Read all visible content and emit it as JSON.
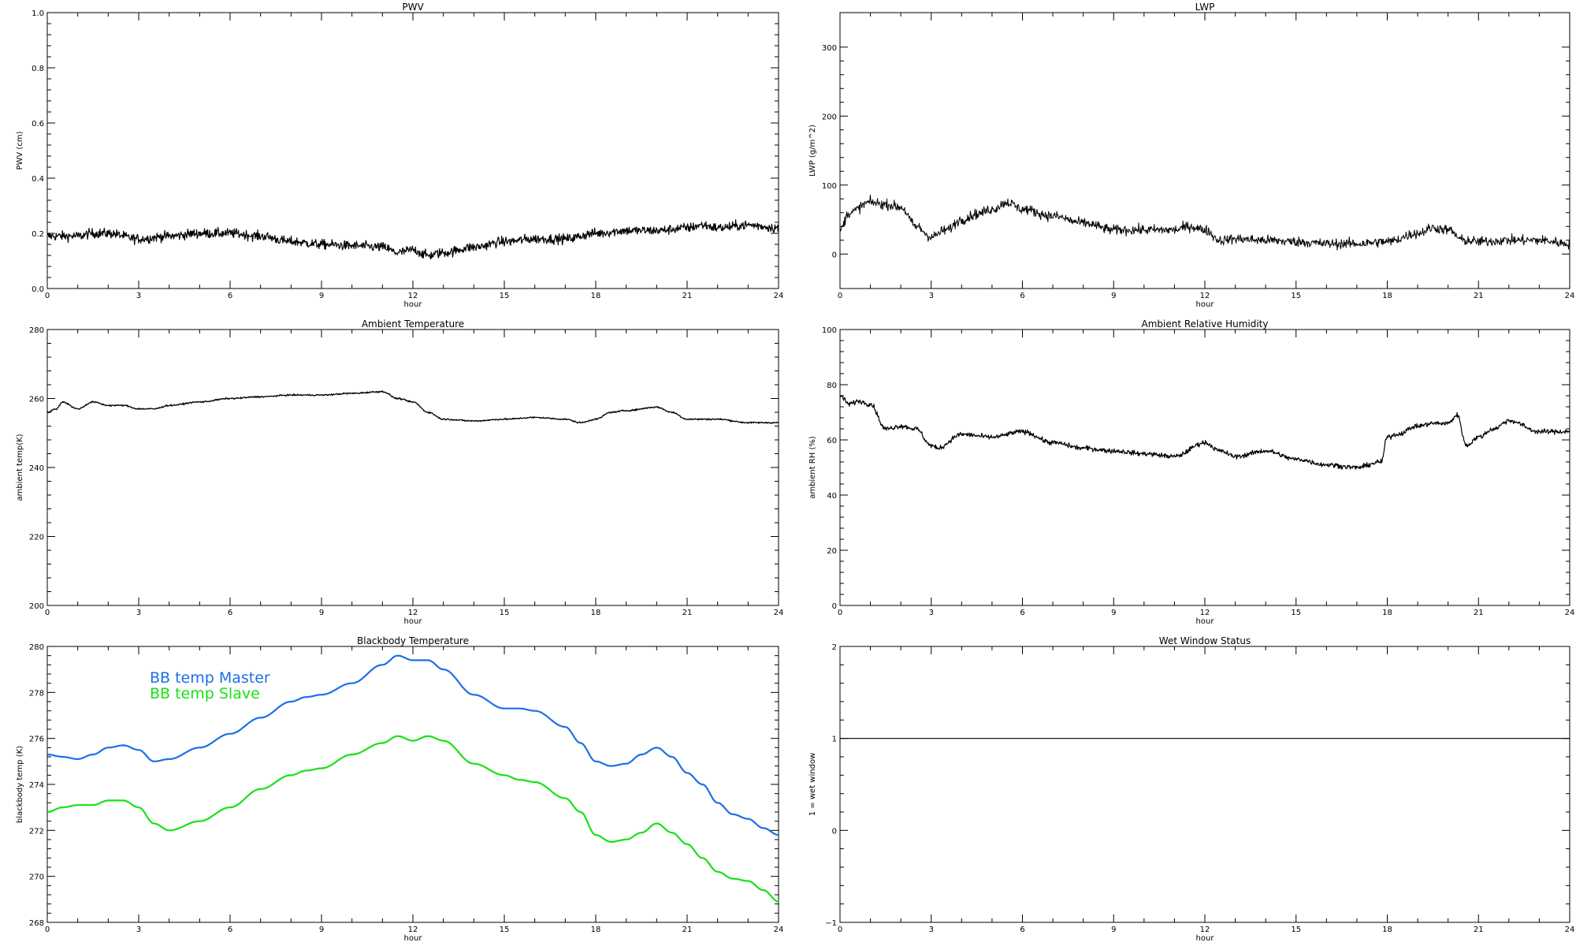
{
  "chart_data": [
    {
      "id": "pwv",
      "type": "line",
      "title": "PWV",
      "xlabel": "hour",
      "ylabel": "PWV (cm)",
      "xlim": [
        0,
        24
      ],
      "ylim": [
        0,
        1
      ],
      "xticks": [
        "0",
        "3",
        "6",
        "9",
        "12",
        "15",
        "18",
        "21",
        "24"
      ],
      "yticks": [
        "0.0",
        "0.2",
        "0.4",
        "0.6",
        "0.8",
        "1.0"
      ],
      "noise": 0.012,
      "series": [
        {
          "name": "",
          "color": "#000000",
          "stroke": 1.2,
          "x": [
            0,
            1,
            1.5,
            2,
            3,
            4,
            5,
            6,
            7,
            8,
            9,
            10,
            11,
            11.5,
            12,
            12.5,
            13,
            14,
            15,
            16,
            17,
            18,
            19,
            20,
            21,
            21.5,
            22,
            23,
            24
          ],
          "y": [
            0.19,
            0.19,
            0.2,
            0.2,
            0.18,
            0.19,
            0.2,
            0.2,
            0.19,
            0.17,
            0.16,
            0.155,
            0.15,
            0.13,
            0.14,
            0.12,
            0.13,
            0.15,
            0.17,
            0.18,
            0.18,
            0.2,
            0.21,
            0.21,
            0.22,
            0.23,
            0.22,
            0.23,
            0.22
          ]
        }
      ]
    },
    {
      "id": "lwp",
      "type": "line",
      "title": "LWP",
      "xlabel": "hour",
      "ylabel": "LWP (g/m^2)",
      "xlim": [
        0,
        24
      ],
      "ylim": [
        -50,
        350
      ],
      "xticks": [
        "0",
        "3",
        "6",
        "9",
        "12",
        "15",
        "18",
        "21",
        "24"
      ],
      "yticks": [
        "0",
        "100",
        "200",
        "300"
      ],
      "noise": 5,
      "series": [
        {
          "name": "",
          "color": "#000000",
          "stroke": 1,
          "x": [
            0,
            0.3,
            1,
            1.5,
            2,
            2.5,
            3,
            3.5,
            4,
            4.5,
            5,
            5.5,
            6,
            7,
            8,
            9,
            10,
            11,
            11.5,
            12,
            12.5,
            13,
            14,
            15,
            16,
            17,
            18,
            19,
            19.5,
            20,
            20.5,
            21,
            22,
            23,
            24
          ],
          "y": [
            35,
            60,
            75,
            72,
            68,
            40,
            25,
            35,
            50,
            58,
            65,
            75,
            65,
            55,
            45,
            35,
            35,
            35,
            40,
            35,
            20,
            22,
            20,
            18,
            15,
            15,
            18,
            30,
            38,
            35,
            20,
            18,
            20,
            20,
            15
          ]
        }
      ]
    },
    {
      "id": "ambient_temp",
      "type": "line",
      "title": "Ambient Temperature",
      "xlabel": "hour",
      "ylabel": "ambient temp(K)",
      "xlim": [
        0,
        24
      ],
      "ylim": [
        200,
        280
      ],
      "xticks": [
        "0",
        "3",
        "6",
        "9",
        "12",
        "15",
        "18",
        "21",
        "24"
      ],
      "yticks": [
        "200",
        "220",
        "240",
        "260",
        "280"
      ],
      "noise": 0.15,
      "series": [
        {
          "name": "",
          "color": "#000000",
          "stroke": 1.3,
          "x": [
            0,
            0.3,
            0.5,
            1,
            1.5,
            2,
            2.5,
            3,
            3.5,
            4,
            5,
            6,
            7,
            8,
            9,
            10,
            11,
            11.5,
            12,
            12.5,
            13,
            14,
            15,
            16,
            17,
            17.5,
            18,
            18.5,
            19,
            20,
            20.5,
            21,
            22,
            23,
            24
          ],
          "y": [
            256,
            257,
            259,
            257,
            259,
            258,
            258,
            257,
            257,
            258,
            259,
            260,
            260.5,
            261,
            261,
            261.5,
            262,
            260,
            259,
            256,
            254,
            253.5,
            254,
            254.5,
            254,
            253,
            254,
            256,
            256.5,
            257.5,
            256,
            254,
            254,
            253,
            253
          ]
        }
      ]
    },
    {
      "id": "ambient_rh",
      "type": "line",
      "title": "Ambient Relative Humidity",
      "xlabel": "hour",
      "ylabel": "ambient RH (%)",
      "xlim": [
        0,
        24
      ],
      "ylim": [
        0,
        100
      ],
      "xticks": [
        "0",
        "3",
        "6",
        "9",
        "12",
        "15",
        "18",
        "21",
        "24"
      ],
      "yticks": [
        "0",
        "20",
        "40",
        "60",
        "80",
        "100"
      ],
      "noise": 0.6,
      "series": [
        {
          "name": "",
          "color": "#000000",
          "stroke": 1.2,
          "x": [
            0,
            0.3,
            0.6,
            1,
            1.5,
            2,
            2.5,
            3,
            3.2,
            4,
            5,
            6,
            7,
            8,
            9,
            10,
            11,
            12,
            12.5,
            13,
            14,
            15,
            16,
            17,
            17.8,
            18,
            18.3,
            19,
            19.5,
            20,
            20.3,
            20.6,
            21,
            21.5,
            22,
            23,
            24
          ],
          "y": [
            76,
            73,
            74,
            73,
            64,
            65,
            64,
            58,
            57,
            62,
            61,
            63,
            59,
            57,
            56,
            55,
            54,
            59,
            56,
            54,
            56,
            53,
            51,
            50,
            52,
            61,
            62,
            65,
            66,
            66,
            69,
            58,
            61,
            64,
            67,
            63,
            63
          ]
        }
      ]
    },
    {
      "id": "bb_temp",
      "type": "line",
      "title": "Blackbody Temperature",
      "xlabel": "hour",
      "ylabel": "blackbody temp (K)",
      "xlim": [
        0,
        24
      ],
      "ylim": [
        268,
        280
      ],
      "xticks": [
        "0",
        "3",
        "6",
        "9",
        "12",
        "15",
        "18",
        "21",
        "24"
      ],
      "yticks": [
        "268",
        "270",
        "272",
        "274",
        "276",
        "278",
        "280"
      ],
      "noise": 0,
      "legend_position": "upper-left",
      "series": [
        {
          "name": "BB temp Master",
          "color": "#1c6fe8",
          "stroke": 2.2,
          "x": [
            0,
            0.5,
            1,
            1.5,
            2,
            2.5,
            3,
            3.5,
            4,
            5,
            6,
            7,
            8,
            8.5,
            9,
            10,
            11,
            11.5,
            12,
            12.5,
            13,
            14,
            15,
            15.5,
            16,
            17,
            17.5,
            18,
            18.5,
            19,
            19.5,
            20,
            20.5,
            21,
            21.5,
            22,
            22.5,
            23,
            23.5,
            24
          ],
          "y": [
            275.3,
            275.2,
            275.1,
            275.3,
            275.6,
            275.7,
            275.5,
            275.0,
            275.1,
            275.6,
            276.2,
            276.9,
            277.6,
            277.8,
            277.9,
            278.4,
            279.2,
            279.6,
            279.4,
            279.4,
            279,
            277.9,
            277.3,
            277.3,
            277.2,
            276.5,
            275.8,
            275.0,
            274.8,
            274.9,
            275.3,
            275.6,
            275.2,
            274.5,
            274.0,
            273.2,
            272.7,
            272.5,
            272.1,
            271.8
          ]
        },
        {
          "name": "BB temp Slave",
          "color": "#19e018",
          "stroke": 2.2,
          "x": [
            0,
            0.5,
            1,
            1.5,
            2,
            2.5,
            3,
            3.5,
            4,
            5,
            6,
            7,
            8,
            8.5,
            9,
            10,
            11,
            11.5,
            12,
            12.5,
            13,
            14,
            15,
            15.5,
            16,
            17,
            17.5,
            18,
            18.5,
            19,
            19.5,
            20,
            20.5,
            21,
            21.5,
            22,
            22.5,
            23,
            23.5,
            24
          ],
          "y": [
            272.8,
            273.0,
            273.1,
            273.1,
            273.3,
            273.3,
            273.0,
            272.3,
            272.0,
            272.4,
            273.0,
            273.8,
            274.4,
            274.6,
            274.7,
            275.3,
            275.8,
            276.1,
            275.9,
            276.1,
            275.9,
            274.9,
            274.4,
            274.2,
            274.1,
            273.4,
            272.8,
            271.8,
            271.5,
            271.6,
            271.9,
            272.3,
            271.9,
            271.4,
            270.8,
            270.2,
            269.9,
            269.8,
            269.4,
            268.9
          ]
        }
      ]
    },
    {
      "id": "wet_window",
      "type": "line",
      "title": "Wet Window Status",
      "xlabel": "hour",
      "ylabel": "1 = wet window",
      "xlim": [
        0,
        24
      ],
      "ylim": [
        -1,
        2
      ],
      "xticks": [
        "0",
        "3",
        "6",
        "9",
        "12",
        "15",
        "18",
        "21",
        "24"
      ],
      "yticks": [
        "−1",
        "0",
        "1",
        "2"
      ],
      "noise": 0,
      "series": [
        {
          "name": "",
          "color": "#000000",
          "stroke": 1.2,
          "x": [
            0,
            24
          ],
          "y": [
            1,
            1
          ]
        }
      ]
    }
  ]
}
